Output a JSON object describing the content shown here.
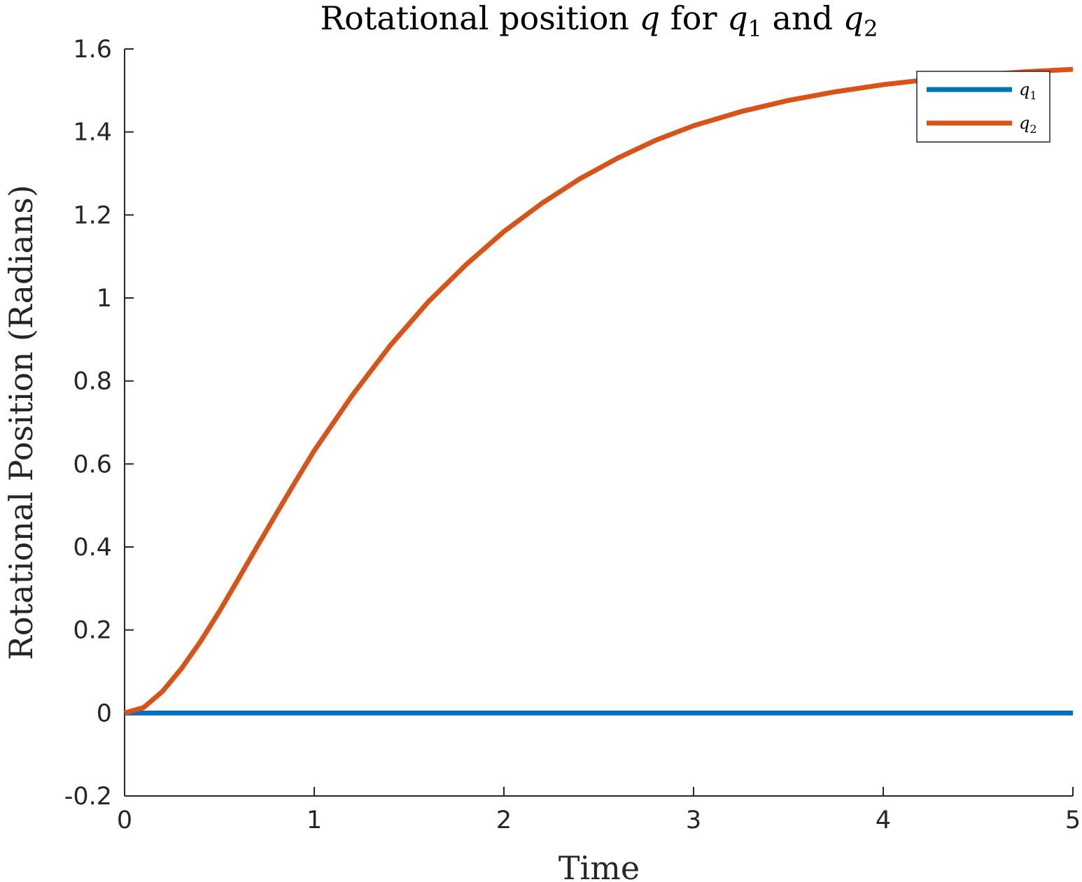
{
  "chart_data": {
    "type": "line",
    "title": {
      "prefix": "Rotational position ",
      "q": "q",
      "for_text": " for ",
      "q1_base": "q",
      "q1_sub": "1",
      "and_text": " and ",
      "q2_base": "q",
      "q2_sub": "2"
    },
    "xlabel": "Time",
    "ylabel": "Rotational Position (Radians)",
    "xlim": [
      0,
      5
    ],
    "ylim": [
      -0.2,
      1.6
    ],
    "xticks": [
      "0",
      "1",
      "2",
      "3",
      "4",
      "5"
    ],
    "yticks": [
      "-0.2",
      "0",
      "0.2",
      "0.4",
      "0.6",
      "0.8",
      "1",
      "1.2",
      "1.4",
      "1.6"
    ],
    "grid": false,
    "legend_position": "top-right",
    "series": [
      {
        "name": "q1",
        "legend_base": "q",
        "legend_sub": "1",
        "color": "#0072BD",
        "x": [
          0,
          0.5,
          1,
          1.5,
          2,
          2.5,
          3,
          3.5,
          4,
          4.5,
          5
        ],
        "y": [
          0,
          0,
          0,
          0,
          0,
          0,
          0,
          0,
          0,
          0,
          0
        ]
      },
      {
        "name": "q2",
        "legend_base": "q",
        "legend_sub": "2",
        "color": "#D95319",
        "x": [
          0,
          0.1,
          0.2,
          0.3,
          0.4,
          0.5,
          0.6,
          0.7,
          0.8,
          0.9,
          1.0,
          1.2,
          1.4,
          1.6,
          1.8,
          2.0,
          2.2,
          2.4,
          2.6,
          2.8,
          3.0,
          3.25,
          3.5,
          3.75,
          4.0,
          4.25,
          4.5,
          4.75,
          5.0
        ],
        "y": [
          0,
          0.013,
          0.052,
          0.107,
          0.172,
          0.245,
          0.323,
          0.402,
          0.48,
          0.557,
          0.632,
          0.765,
          0.885,
          0.99,
          1.08,
          1.16,
          1.228,
          1.287,
          1.337,
          1.38,
          1.415,
          1.449,
          1.476,
          1.497,
          1.514,
          1.527,
          1.537,
          1.545,
          1.551
        ]
      }
    ]
  }
}
